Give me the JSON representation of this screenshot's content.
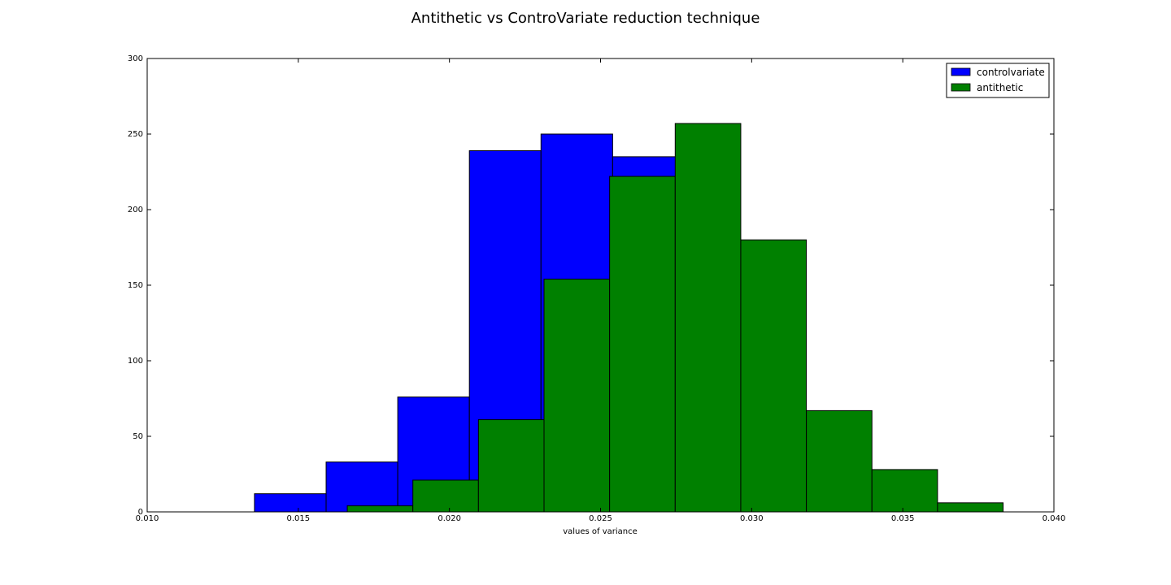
{
  "chart_data": {
    "type": "bar",
    "title": "Antithetic vs ControVariate reduction technique",
    "xlabel": "values of variance",
    "ylabel": "",
    "xlim": [
      0.01,
      0.04
    ],
    "ylim": [
      0,
      300
    ],
    "xticks": [
      "0.010",
      "0.015",
      "0.020",
      "0.025",
      "0.030",
      "0.035",
      "0.040"
    ],
    "yticks": [
      "0",
      "50",
      "100",
      "150",
      "200",
      "250",
      "300"
    ],
    "grid": false,
    "legend_position": "top-right",
    "series": [
      {
        "name": "controlvariate",
        "color": "#0000ff",
        "bins": [
          {
            "x0": 0.01355,
            "x1": 0.01592,
            "count": 12
          },
          {
            "x0": 0.01592,
            "x1": 0.01829,
            "count": 33
          },
          {
            "x0": 0.01829,
            "x1": 0.02066,
            "count": 76
          },
          {
            "x0": 0.02066,
            "x1": 0.02303,
            "count": 239
          },
          {
            "x0": 0.02303,
            "x1": 0.0254,
            "count": 250
          },
          {
            "x0": 0.0254,
            "x1": 0.02777,
            "count": 235
          }
        ]
      },
      {
        "name": "antithetic",
        "color": "#008000",
        "bins": [
          {
            "x0": 0.01662,
            "x1": 0.01879,
            "count": 4
          },
          {
            "x0": 0.01879,
            "x1": 0.02096,
            "count": 21
          },
          {
            "x0": 0.02096,
            "x1": 0.02313,
            "count": 61
          },
          {
            "x0": 0.02313,
            "x1": 0.0253,
            "count": 154
          },
          {
            "x0": 0.0253,
            "x1": 0.02747,
            "count": 222
          },
          {
            "x0": 0.02747,
            "x1": 0.02964,
            "count": 257
          },
          {
            "x0": 0.02964,
            "x1": 0.03181,
            "count": 180
          },
          {
            "x0": 0.03181,
            "x1": 0.03398,
            "count": 67
          },
          {
            "x0": 0.03398,
            "x1": 0.03615,
            "count": 28
          },
          {
            "x0": 0.03615,
            "x1": 0.03832,
            "count": 6
          }
        ]
      }
    ]
  }
}
